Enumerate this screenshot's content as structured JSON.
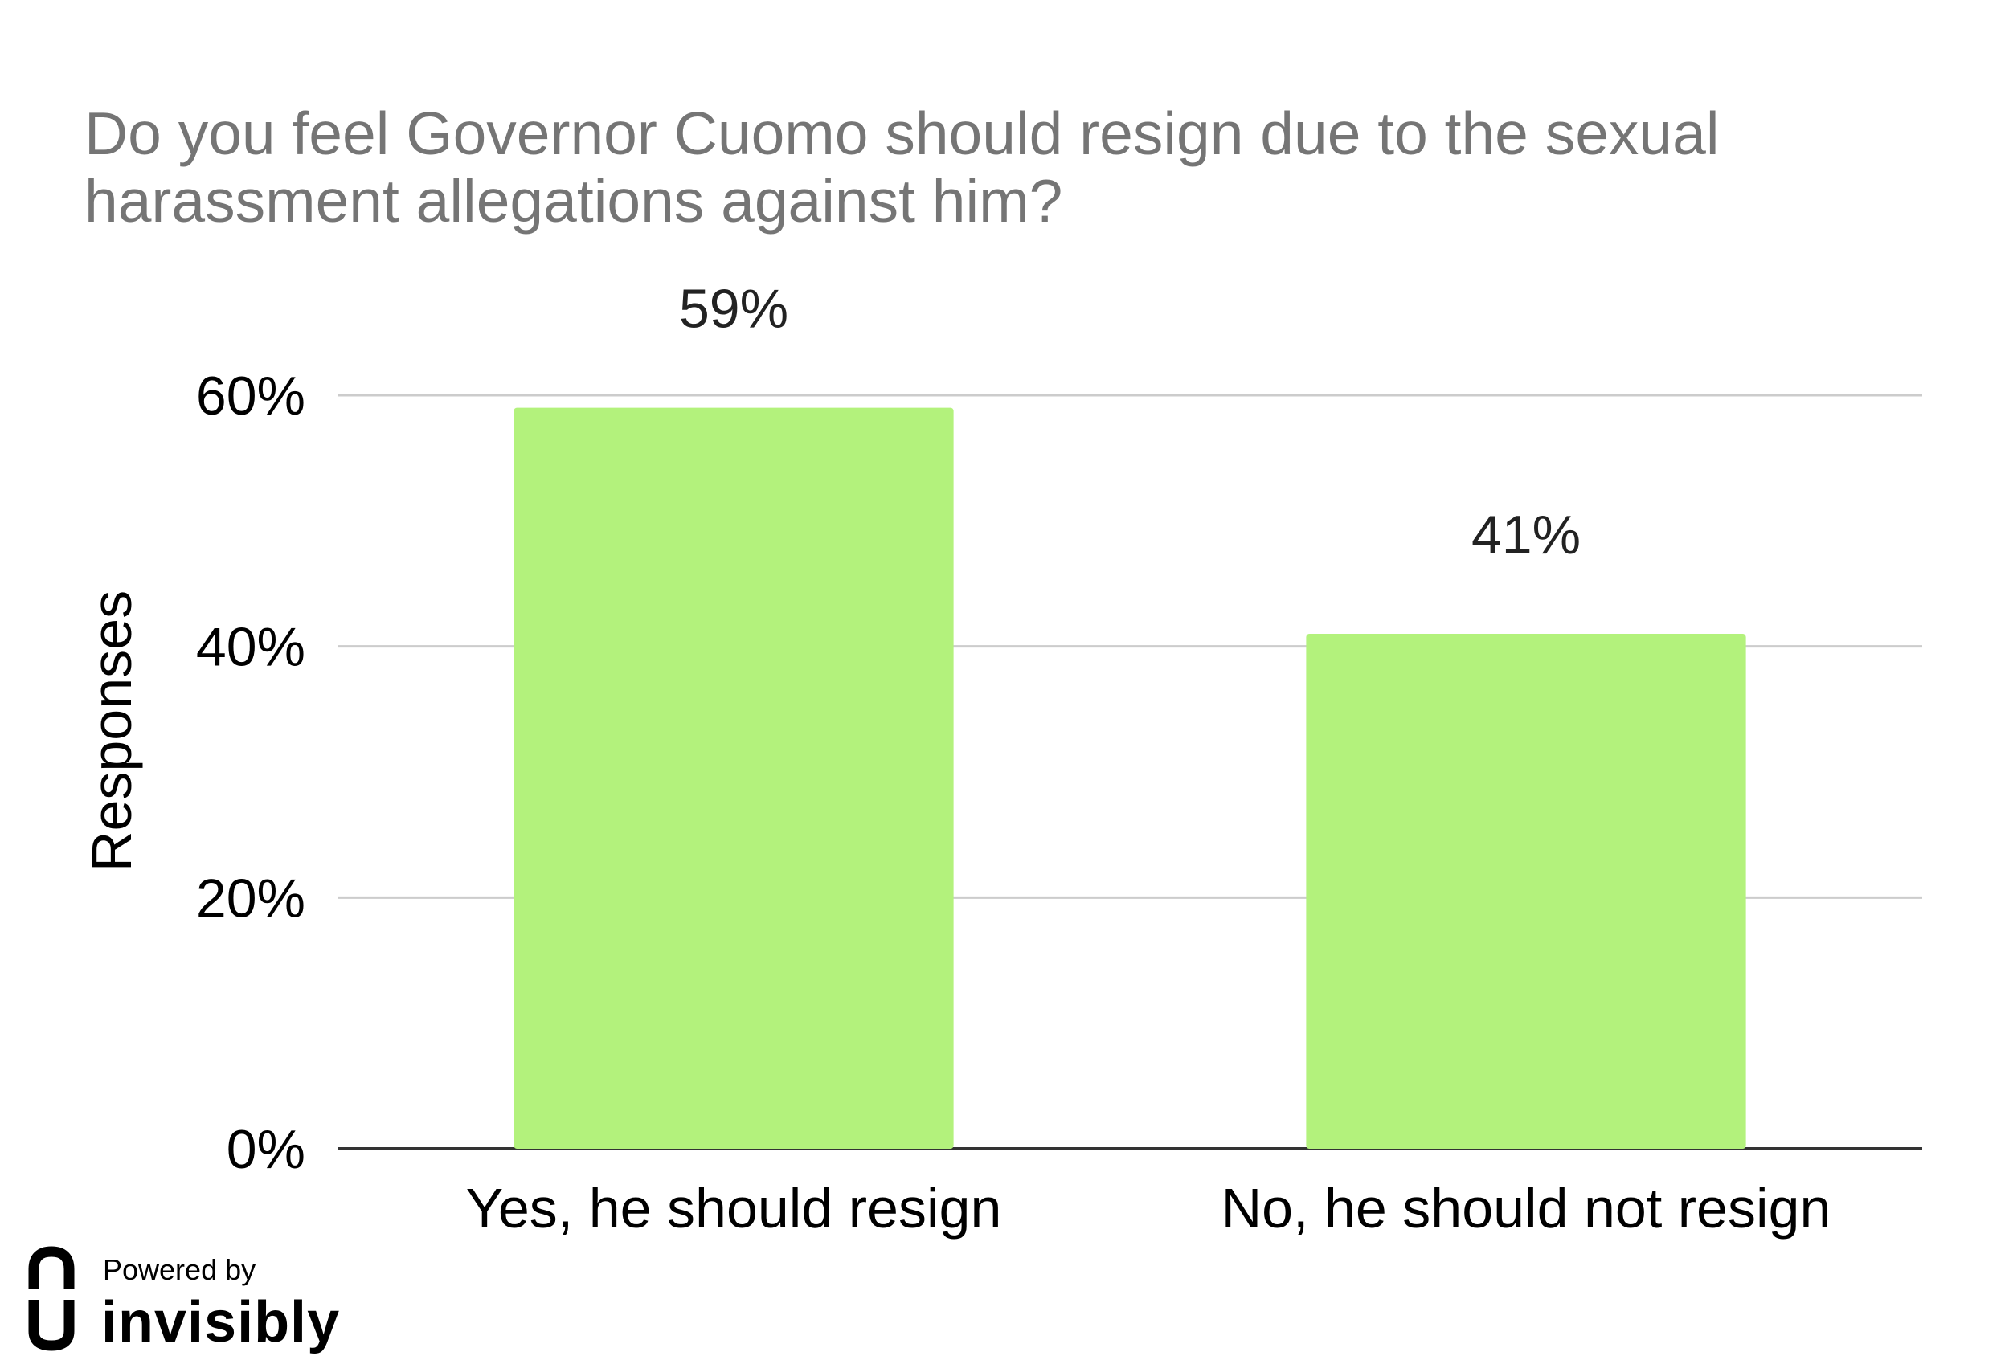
{
  "chart_data": {
    "type": "bar",
    "title_lines": [
      "Do you feel Governor Cuomo should resign due to the sexual",
      "harassment allegations against him?"
    ],
    "categories": [
      "Yes, he should resign",
      "No, he should not resign"
    ],
    "values": [
      59,
      41
    ],
    "data_labels": [
      "59%",
      "41%"
    ],
    "xlabel": "",
    "ylabel": "Responses",
    "ylim": [
      0,
      60
    ],
    "yticks": [
      0,
      20,
      40,
      60
    ],
    "ytick_labels": [
      "0%",
      "20%",
      "40%",
      "60%"
    ],
    "grid": true,
    "legend": "none",
    "bar_color": "#b3f27c",
    "gridline_color": "#cccccc",
    "axis_color": "#333333"
  },
  "branding": {
    "powered_by": "Powered by",
    "name": "invisibly",
    "logo_icon": "invisibly-logo-icon"
  }
}
